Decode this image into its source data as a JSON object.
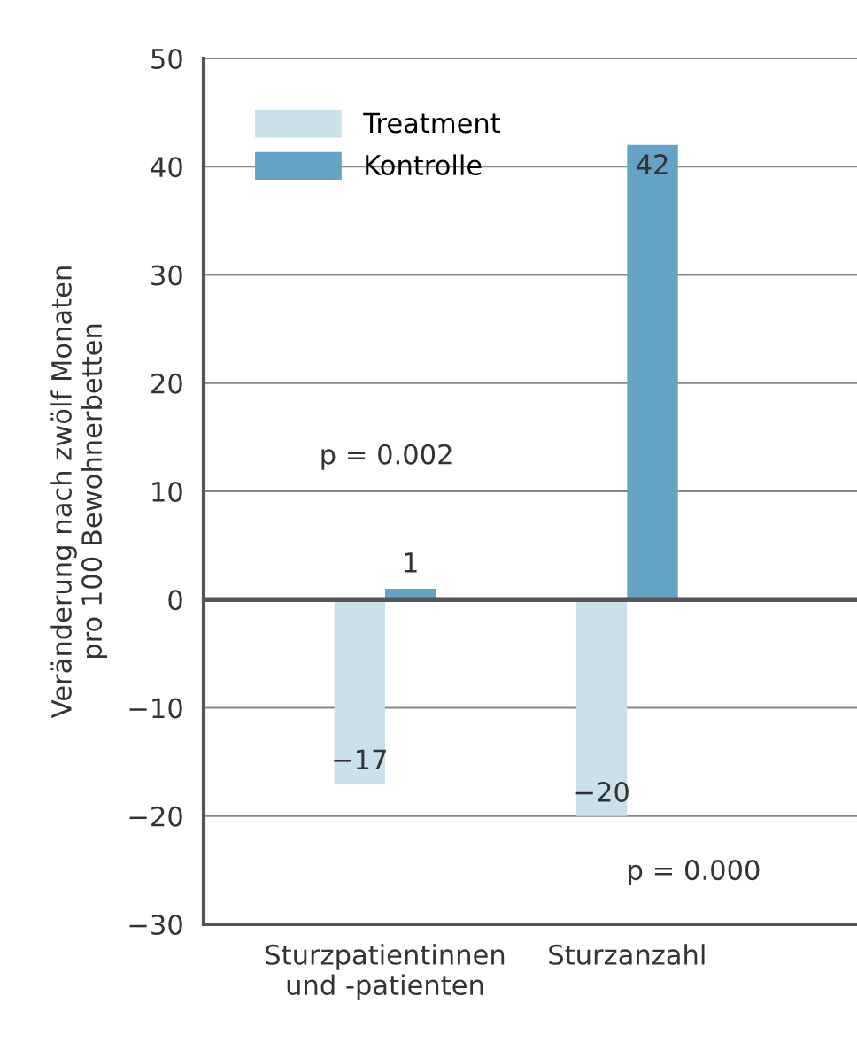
{
  "chart_data": {
    "type": "bar",
    "ylabel": "Veränderung nach zwölf Monaten\npro 100 Bewohnerbetten",
    "categories": [
      "Sturzpatientinnen\nund -patienten",
      "Sturzanzahl"
    ],
    "series": [
      {
        "name": "Treatment",
        "color": "#cce0ea",
        "values": [
          -17,
          -20
        ],
        "value_labels": [
          "−17",
          "−20"
        ]
      },
      {
        "name": "Kontrolle",
        "color": "#64a2c6",
        "values": [
          1,
          42
        ],
        "value_labels": [
          "1",
          "42"
        ]
      }
    ],
    "ylim": [
      -30,
      50
    ],
    "yticks": [
      {
        "value": -30,
        "label": "−30"
      },
      {
        "value": -20,
        "label": "−20"
      },
      {
        "value": -10,
        "label": "−10"
      },
      0,
      10,
      20,
      30,
      40,
      50
    ],
    "grid": "y",
    "legend": "top left",
    "annotations": [
      "p = 0.002",
      "p = 0.000"
    ]
  }
}
